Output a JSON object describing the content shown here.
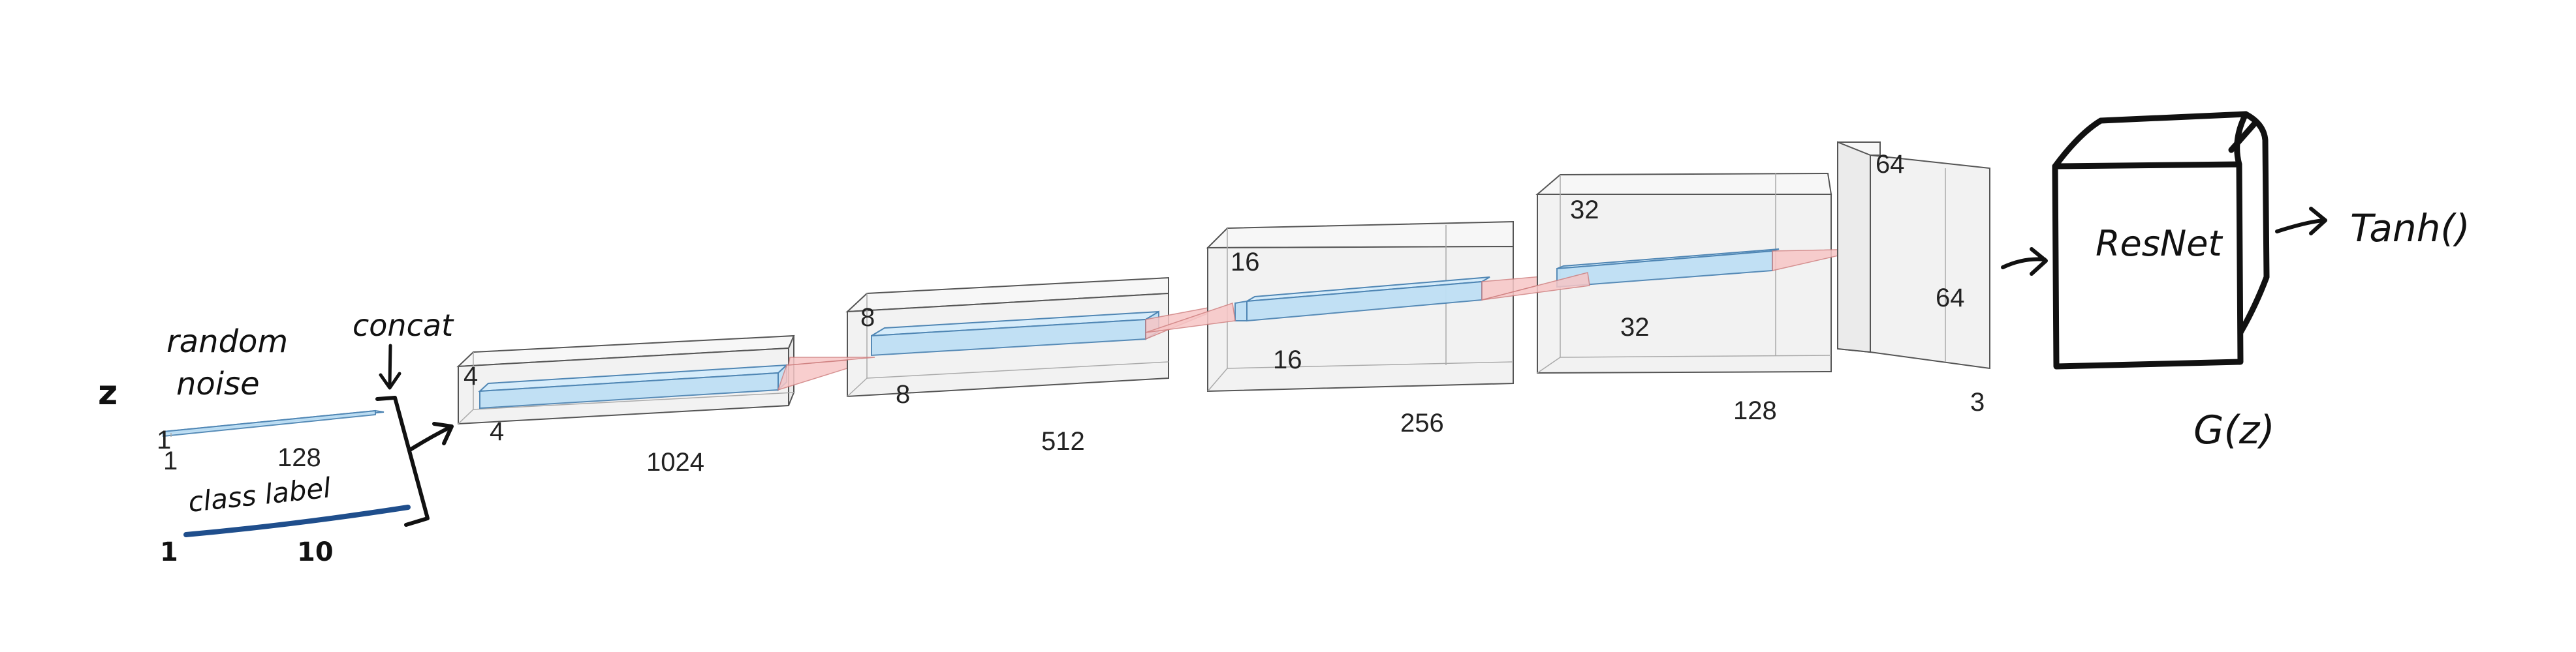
{
  "input": {
    "z_label": "z",
    "noise_label_line1": "random",
    "noise_label_line2": "noise",
    "noise_dim_left": "1",
    "noise_dim_left2": "1",
    "noise_dim_right": "128",
    "class_label": "class label",
    "class_dim_left": "1",
    "class_dim_right": "10",
    "concat_label": "concat",
    "class_line_color": "#1f4e8c"
  },
  "blocks": [
    {
      "height_label": "4",
      "width_label": "4",
      "channels": "1024"
    },
    {
      "height_label": "8",
      "width_label": "8",
      "channels": "512"
    },
    {
      "height_label": "16",
      "width_label": "16",
      "channels": "256"
    },
    {
      "height_label": "32",
      "width_label": "32",
      "channels": "128"
    },
    {
      "height_label": "64",
      "width_label": "64",
      "channels": "3"
    }
  ],
  "resnet": {
    "label": "ResNet",
    "output_label": "Tanh()",
    "generator_label": "G(z)"
  },
  "colors": {
    "kernel_fill": "#bfe0f5",
    "cone_fill": "#f7c6c6",
    "box_fill": "#f2f2f2"
  }
}
